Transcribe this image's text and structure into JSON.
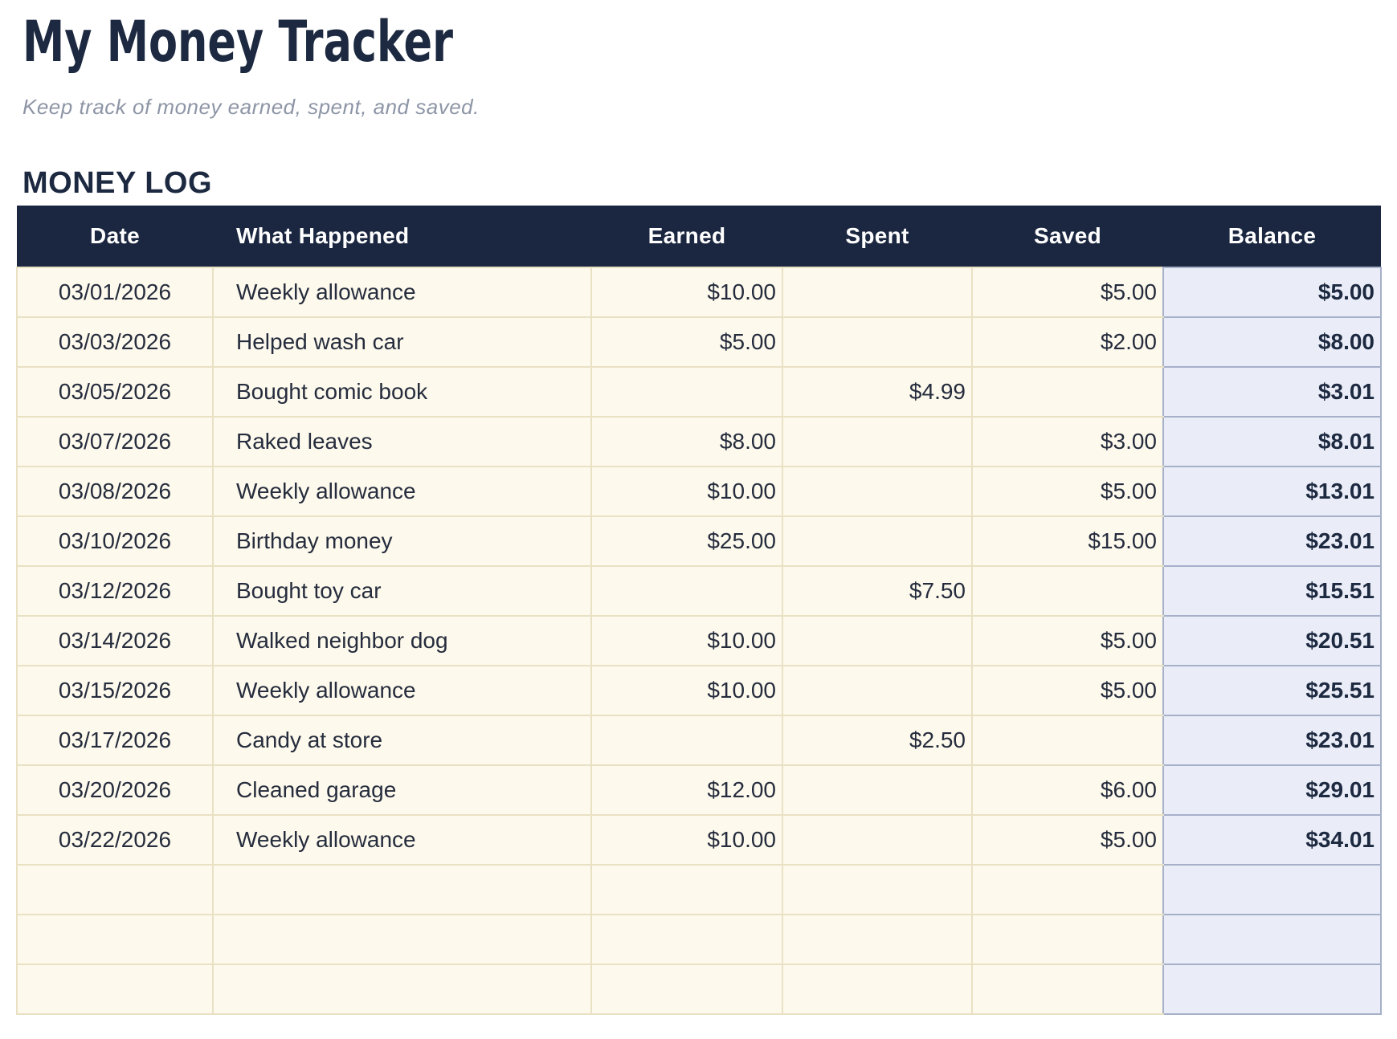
{
  "page": {
    "title": "My Money Tracker",
    "subtitle": "Keep track of money earned, spent, and saved.",
    "section_title": "MONEY LOG"
  },
  "table": {
    "columns": [
      "Date",
      "What Happened",
      "Earned",
      "Spent",
      "Saved",
      "Balance"
    ],
    "rows": [
      {
        "date": "03/01/2026",
        "what_happened": "Weekly allowance",
        "earned": "$10.00",
        "spent": "",
        "saved": "$5.00",
        "balance": "$5.00"
      },
      {
        "date": "03/03/2026",
        "what_happened": "Helped wash car",
        "earned": "$5.00",
        "spent": "",
        "saved": "$2.00",
        "balance": "$8.00"
      },
      {
        "date": "03/05/2026",
        "what_happened": "Bought comic book",
        "earned": "",
        "spent": "$4.99",
        "saved": "",
        "balance": "$3.01"
      },
      {
        "date": "03/07/2026",
        "what_happened": "Raked leaves",
        "earned": "$8.00",
        "spent": "",
        "saved": "$3.00",
        "balance": "$8.01"
      },
      {
        "date": "03/08/2026",
        "what_happened": "Weekly allowance",
        "earned": "$10.00",
        "spent": "",
        "saved": "$5.00",
        "balance": "$13.01"
      },
      {
        "date": "03/10/2026",
        "what_happened": "Birthday money",
        "earned": "$25.00",
        "spent": "",
        "saved": "$15.00",
        "balance": "$23.01"
      },
      {
        "date": "03/12/2026",
        "what_happened": "Bought toy car",
        "earned": "",
        "spent": "$7.50",
        "saved": "",
        "balance": "$15.51"
      },
      {
        "date": "03/14/2026",
        "what_happened": "Walked neighbor dog",
        "earned": "$10.00",
        "spent": "",
        "saved": "$5.00",
        "balance": "$20.51"
      },
      {
        "date": "03/15/2026",
        "what_happened": "Weekly allowance",
        "earned": "$10.00",
        "spent": "",
        "saved": "$5.00",
        "balance": "$25.51"
      },
      {
        "date": "03/17/2026",
        "what_happened": "Candy at store",
        "earned": "",
        "spent": "$2.50",
        "saved": "",
        "balance": "$23.01"
      },
      {
        "date": "03/20/2026",
        "what_happened": "Cleaned garage",
        "earned": "$12.00",
        "spent": "",
        "saved": "$6.00",
        "balance": "$29.01"
      },
      {
        "date": "03/22/2026",
        "what_happened": "Weekly allowance",
        "earned": "$10.00",
        "spent": "",
        "saved": "$5.00",
        "balance": "$34.01"
      },
      {
        "date": "",
        "what_happened": "",
        "earned": "",
        "spent": "",
        "saved": "",
        "balance": ""
      },
      {
        "date": "",
        "what_happened": "",
        "earned": "",
        "spent": "",
        "saved": "",
        "balance": ""
      },
      {
        "date": "",
        "what_happened": "",
        "earned": "",
        "spent": "",
        "saved": "",
        "balance": ""
      }
    ]
  },
  "colors": {
    "header_bg": "#1b2740",
    "header_text": "#ffffff",
    "row_bg": "#fdf9ec",
    "grid_border": "#e9e1c4",
    "balance_bg": "#eaedf7",
    "balance_border": "#a6b0c9",
    "title_text": "#1c2940",
    "subtitle_text": "#8d95a6",
    "cell_text": "#252c3d"
  }
}
